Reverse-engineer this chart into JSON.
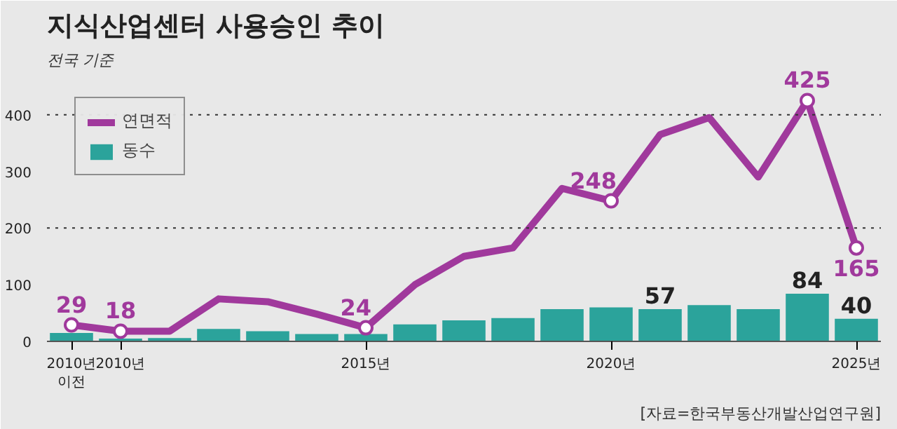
{
  "chart_data": {
    "type": "bar",
    "title": "지식산업센터 사용승인 추이",
    "subtitle": "전국 기준",
    "categories": [
      "2010년\n이전",
      "2010년",
      null,
      null,
      null,
      null,
      "2015년",
      null,
      null,
      null,
      null,
      "2020년",
      null,
      null,
      null,
      null,
      "2025년"
    ],
    "series": [
      {
        "name": "연면적",
        "type": "line",
        "color": "#a0399c",
        "values": [
          29,
          18,
          18,
          75,
          70,
          48,
          24,
          100,
          150,
          165,
          270,
          248,
          365,
          395,
          290,
          425,
          165
        ],
        "value_labels": [
          "29",
          "18",
          null,
          null,
          null,
          null,
          "24",
          null,
          null,
          null,
          null,
          "248",
          null,
          null,
          null,
          "425",
          "165"
        ]
      },
      {
        "name": "동수",
        "color": "#2ba39b",
        "values": [
          15,
          5,
          6,
          22,
          18,
          13,
          13,
          30,
          37,
          41,
          57,
          60,
          57,
          64,
          57,
          84,
          40
        ],
        "value_labels": [
          null,
          null,
          null,
          null,
          null,
          null,
          null,
          null,
          null,
          null,
          null,
          null,
          "57",
          null,
          null,
          "84",
          "40"
        ]
      }
    ],
    "ylim": [
      0,
      480
    ],
    "yticks": [
      0,
      100,
      200,
      300,
      400
    ],
    "ref_lines": [
      {
        "axis": "y",
        "value": 200,
        "label": null,
        "line_style": "dotted",
        "color": "#333333"
      },
      {
        "axis": "y",
        "value": 400,
        "label": null,
        "line_style": "dotted",
        "color": "#333333"
      }
    ],
    "legend": "top left",
    "annotations": [
      "[자료=한국부동산개발산업연구원]"
    ]
  }
}
